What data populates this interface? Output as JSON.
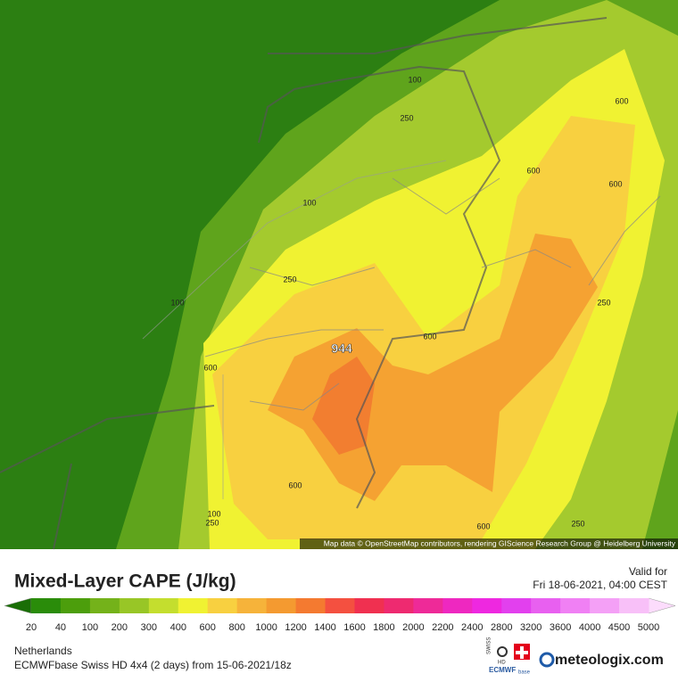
{
  "map": {
    "attribution": "Map data © OpenStreetMap contributors, rendering GIScience Research Group @ Heidelberg University",
    "contour_labels": [
      "100",
      "100",
      "100",
      "100",
      "250",
      "250",
      "250",
      "250",
      "250",
      "600",
      "600",
      "600",
      "600",
      "600",
      "600",
      "600",
      "944"
    ]
  },
  "legend": {
    "title": "Mixed-Layer CAPE (J/kg)",
    "valid_label": "Valid for",
    "valid_time": "Fri 18-06-2021, 04:00 CEST",
    "ticks": [
      20,
      40,
      100,
      200,
      300,
      400,
      600,
      800,
      1000,
      1200,
      1400,
      1600,
      1800,
      2000,
      2200,
      2400,
      2800,
      3200,
      3600,
      4000,
      4500,
      5000
    ],
    "colors": [
      "#2a8c0a",
      "#4c9e0c",
      "#74b21a",
      "#98c626",
      "#c4de2e",
      "#f0f232",
      "#f8d040",
      "#f6b33a",
      "#f49a30",
      "#f47a30",
      "#f45040",
      "#f03050",
      "#ee2a70",
      "#ee2a98",
      "#ee28c0",
      "#ee28e0",
      "#e240ee",
      "#e860f0",
      "#f080f4",
      "#f4a0f6",
      "#f8c0f8"
    ],
    "low_color": "#1a6e06",
    "high_color": "#fcdcfc"
  },
  "footer": {
    "region": "Netherlands",
    "model": "ECMWFbase Swiss HD 4x4 (2 days) from  15-06-2021/18z",
    "logo_swiss": "SWISS",
    "logo_hd": "HD",
    "logo_ecmwf": "ECMWF",
    "logo_base": "base",
    "brand": "meteologix.com"
  }
}
